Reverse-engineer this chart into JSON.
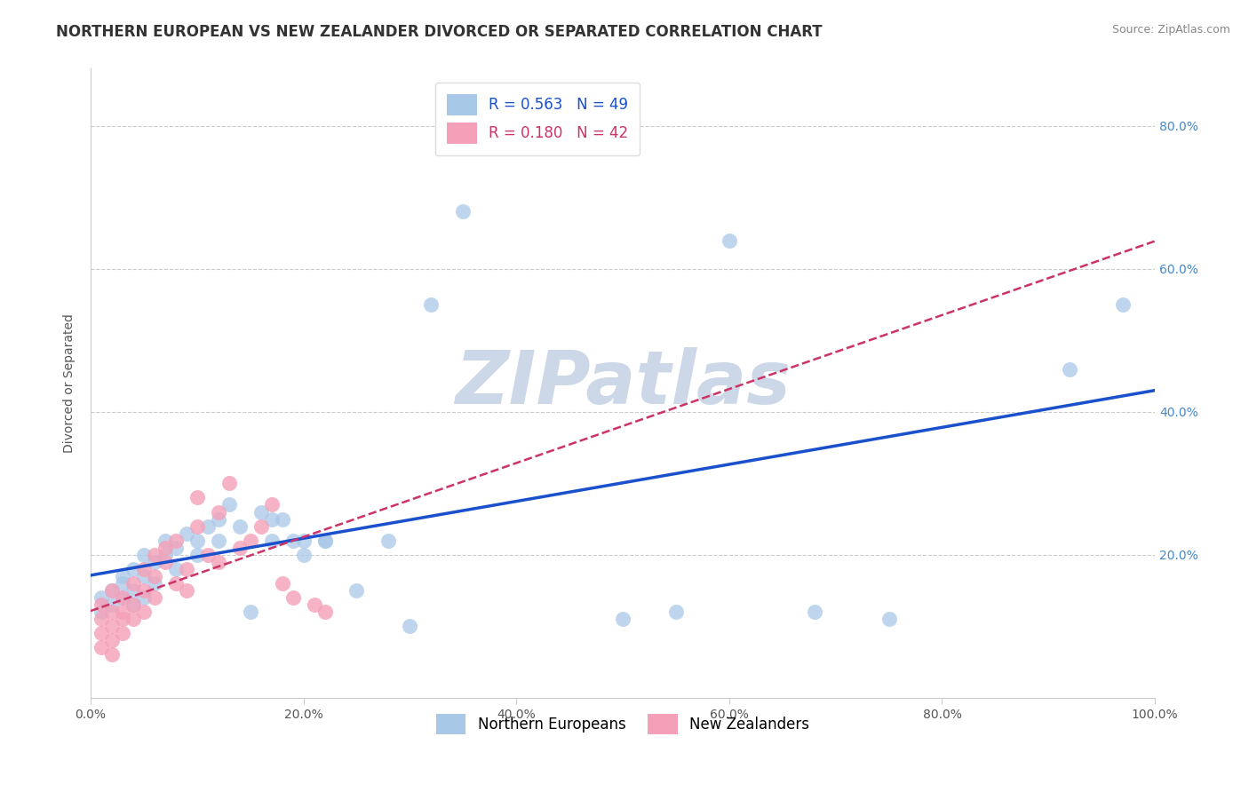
{
  "title": "NORTHERN EUROPEAN VS NEW ZEALANDER DIVORCED OR SEPARATED CORRELATION CHART",
  "source": "Source: ZipAtlas.com",
  "ylabel": "Divorced or Separated",
  "watermark": "ZIPatlas",
  "legend_blue_r": "R = 0.563",
  "legend_blue_n": "N = 49",
  "legend_pink_r": "R = 0.180",
  "legend_pink_n": "N = 42",
  "xlim": [
    0,
    1.0
  ],
  "ylim": [
    0,
    0.88
  ],
  "xticks": [
    0.0,
    0.2,
    0.4,
    0.6,
    0.8,
    1.0
  ],
  "yticks_right": [
    0.2,
    0.4,
    0.6,
    0.8
  ],
  "yticks_grid": [
    0.2,
    0.4,
    0.6,
    0.8
  ],
  "xticklabels": [
    "0.0%",
    "20.0%",
    "40.0%",
    "60.0%",
    "80.0%",
    "100.0%"
  ],
  "yticklabels_right": [
    "20.0%",
    "40.0%",
    "60.0%",
    "80.0%"
  ],
  "blue_color": "#a8c8e8",
  "pink_color": "#f4a0b8",
  "blue_line_color": "#1a50cc",
  "pink_line_color": "#cc3366",
  "legend_bottom": [
    "Northern Europeans",
    "New Zealanders"
  ],
  "blue_scatter": [
    [
      0.01,
      0.12
    ],
    [
      0.01,
      0.14
    ],
    [
      0.02,
      0.13
    ],
    [
      0.02,
      0.15
    ],
    [
      0.03,
      0.14
    ],
    [
      0.03,
      0.17
    ],
    [
      0.03,
      0.16
    ],
    [
      0.04,
      0.15
    ],
    [
      0.04,
      0.18
    ],
    [
      0.04,
      0.13
    ],
    [
      0.05,
      0.17
    ],
    [
      0.05,
      0.14
    ],
    [
      0.05,
      0.2
    ],
    [
      0.06,
      0.16
    ],
    [
      0.06,
      0.19
    ],
    [
      0.07,
      0.2
    ],
    [
      0.07,
      0.22
    ],
    [
      0.08,
      0.18
    ],
    [
      0.08,
      0.21
    ],
    [
      0.09,
      0.23
    ],
    [
      0.1,
      0.2
    ],
    [
      0.1,
      0.22
    ],
    [
      0.11,
      0.24
    ],
    [
      0.12,
      0.22
    ],
    [
      0.12,
      0.25
    ],
    [
      0.13,
      0.27
    ],
    [
      0.14,
      0.24
    ],
    [
      0.15,
      0.12
    ],
    [
      0.16,
      0.26
    ],
    [
      0.17,
      0.22
    ],
    [
      0.17,
      0.25
    ],
    [
      0.18,
      0.25
    ],
    [
      0.19,
      0.22
    ],
    [
      0.2,
      0.22
    ],
    [
      0.2,
      0.2
    ],
    [
      0.22,
      0.22
    ],
    [
      0.22,
      0.22
    ],
    [
      0.25,
      0.15
    ],
    [
      0.28,
      0.22
    ],
    [
      0.3,
      0.1
    ],
    [
      0.32,
      0.55
    ],
    [
      0.35,
      0.68
    ],
    [
      0.5,
      0.11
    ],
    [
      0.55,
      0.12
    ],
    [
      0.6,
      0.64
    ],
    [
      0.68,
      0.12
    ],
    [
      0.75,
      0.11
    ],
    [
      0.92,
      0.46
    ],
    [
      0.97,
      0.55
    ]
  ],
  "pink_scatter": [
    [
      0.01,
      0.09
    ],
    [
      0.01,
      0.11
    ],
    [
      0.01,
      0.13
    ],
    [
      0.01,
      0.07
    ],
    [
      0.02,
      0.1
    ],
    [
      0.02,
      0.12
    ],
    [
      0.02,
      0.15
    ],
    [
      0.02,
      0.08
    ],
    [
      0.02,
      0.06
    ],
    [
      0.03,
      0.14
    ],
    [
      0.03,
      0.12
    ],
    [
      0.03,
      0.09
    ],
    [
      0.03,
      0.11
    ],
    [
      0.04,
      0.16
    ],
    [
      0.04,
      0.13
    ],
    [
      0.04,
      0.11
    ],
    [
      0.05,
      0.15
    ],
    [
      0.05,
      0.18
    ],
    [
      0.05,
      0.12
    ],
    [
      0.06,
      0.2
    ],
    [
      0.06,
      0.17
    ],
    [
      0.06,
      0.14
    ],
    [
      0.07,
      0.21
    ],
    [
      0.07,
      0.19
    ],
    [
      0.08,
      0.16
    ],
    [
      0.08,
      0.22
    ],
    [
      0.09,
      0.18
    ],
    [
      0.09,
      0.15
    ],
    [
      0.1,
      0.24
    ],
    [
      0.1,
      0.28
    ],
    [
      0.11,
      0.2
    ],
    [
      0.12,
      0.26
    ],
    [
      0.12,
      0.19
    ],
    [
      0.13,
      0.3
    ],
    [
      0.14,
      0.21
    ],
    [
      0.15,
      0.22
    ],
    [
      0.16,
      0.24
    ],
    [
      0.17,
      0.27
    ],
    [
      0.18,
      0.16
    ],
    [
      0.19,
      0.14
    ],
    [
      0.21,
      0.13
    ],
    [
      0.22,
      0.12
    ]
  ],
  "grid_color": "#cccccc",
  "background_color": "#ffffff",
  "title_color": "#333333",
  "source_color": "#888888",
  "title_fontsize": 12,
  "axis_label_fontsize": 10,
  "tick_fontsize": 10,
  "legend_fontsize": 12,
  "watermark_color": "#ccd8e8",
  "watermark_fontsize": 60
}
